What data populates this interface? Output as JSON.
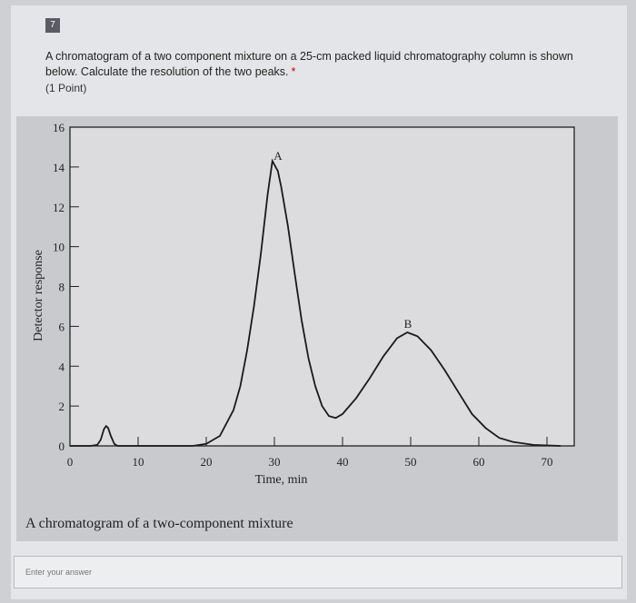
{
  "question": {
    "number": "7",
    "text": "A chromatogram of a two component mixture on a 25-cm packed liquid chromatography column is shown below. Calculate the resolution of the two peaks.",
    "required_mark": "*",
    "points": "(1 Point)"
  },
  "chart_data": {
    "type": "line",
    "x": [
      0,
      3,
      4,
      4.5,
      5,
      5.3,
      5.6,
      6,
      6.5,
      7,
      10,
      15,
      18,
      20,
      22,
      24,
      25,
      26,
      27,
      28,
      29,
      29.7,
      30.5,
      31,
      32,
      33,
      34,
      35,
      36,
      37,
      38,
      39,
      40,
      42,
      44,
      46,
      48,
      49.5,
      51,
      53,
      55,
      57,
      59,
      61,
      63,
      65,
      68,
      72
    ],
    "series": [
      {
        "color": "#1a1a1a",
        "values": [
          0,
          0,
          0.05,
          0.3,
          0.85,
          1.0,
          0.9,
          0.5,
          0.1,
          0,
          0,
          0,
          0,
          0.1,
          0.5,
          1.8,
          3.0,
          4.8,
          7.0,
          9.6,
          12.6,
          14.3,
          13.8,
          13.0,
          11.0,
          8.6,
          6.3,
          4.4,
          3.0,
          2.0,
          1.5,
          1.4,
          1.6,
          2.4,
          3.4,
          4.5,
          5.4,
          5.7,
          5.5,
          4.8,
          3.8,
          2.7,
          1.6,
          0.9,
          0.4,
          0.2,
          0.05,
          0
        ]
      }
    ],
    "xlim": [
      0,
      74
    ],
    "xticks": [
      0,
      10,
      20,
      30,
      40,
      50,
      60,
      70
    ],
    "ylim": [
      0,
      16
    ],
    "yticks": [
      0,
      2,
      4,
      6,
      8,
      10,
      12,
      14,
      16
    ],
    "x_label": "Time, min",
    "y_label": "Detector response",
    "annotations": [
      "A",
      "B"
    ],
    "caption": "A chromatogram of a two-component mixture"
  },
  "answer_placeholder": "Enter your answer"
}
